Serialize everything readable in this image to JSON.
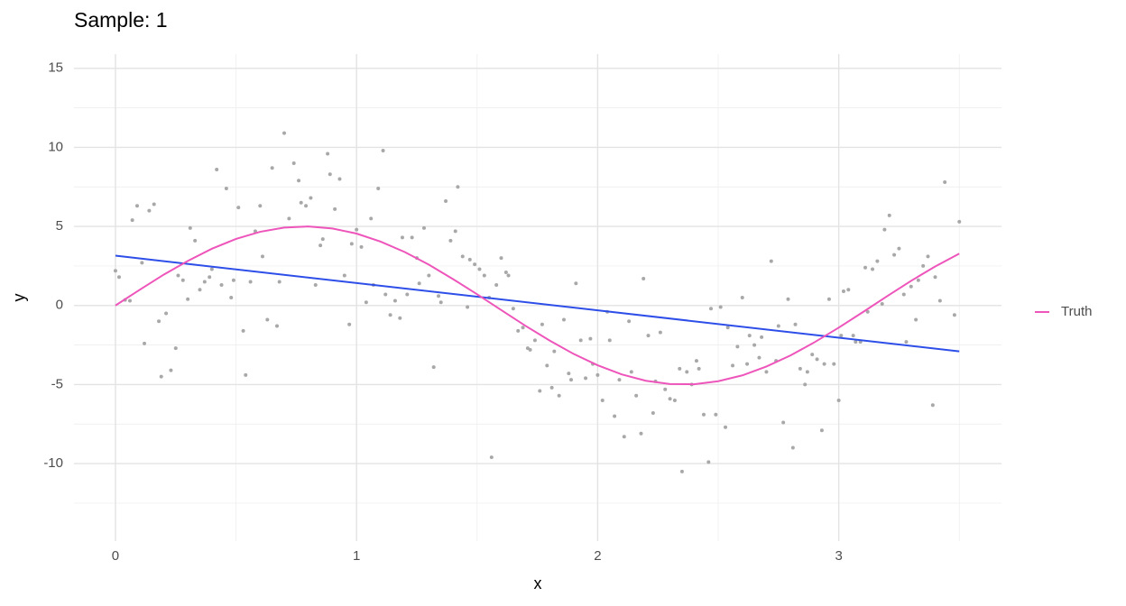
{
  "chart_data": {
    "type": "scatter",
    "title": "Sample: 1",
    "xlabel": "x",
    "ylabel": "y",
    "xlim": [
      -0.172,
      3.675
    ],
    "ylim": [
      -14.9,
      15.9
    ],
    "xticks": [
      0,
      1,
      2,
      3
    ],
    "yticks": [
      -10,
      -5,
      0,
      5,
      10,
      15
    ],
    "x_minor_ticks": [
      0.5,
      1.5,
      2.5,
      3.5
    ],
    "y_minor_ticks": [
      -12.5,
      -7.5,
      -2.5,
      2.5,
      7.5,
      12.5
    ],
    "grid": true,
    "legend": "right",
    "points": {
      "color": "#a8a8a8",
      "x": [
        0.0,
        0.015,
        0.04,
        0.06,
        0.07,
        0.09,
        0.11,
        0.12,
        0.14,
        0.16,
        0.18,
        0.19,
        0.21,
        0.23,
        0.25,
        0.26,
        0.28,
        0.3,
        0.31,
        0.33,
        0.35,
        0.37,
        0.39,
        0.4,
        0.42,
        0.44,
        0.46,
        0.48,
        0.49,
        0.51,
        0.53,
        0.54,
        0.56,
        0.58,
        0.6,
        0.61,
        0.63,
        0.65,
        0.67,
        0.68,
        0.7,
        0.72,
        0.74,
        0.76,
        0.77,
        0.79,
        0.81,
        0.83,
        0.85,
        0.86,
        0.88,
        0.89,
        0.91,
        0.93,
        0.95,
        0.97,
        0.98,
        1.0,
        1.02,
        1.04,
        1.06,
        1.07,
        1.09,
        1.11,
        1.12,
        1.14,
        1.16,
        1.18,
        1.19,
        1.21,
        1.23,
        1.25,
        1.26,
        1.28,
        1.3,
        1.32,
        1.34,
        1.35,
        1.37,
        1.39,
        1.41,
        1.42,
        1.44,
        1.46,
        1.47,
        1.49,
        1.51,
        1.53,
        1.55,
        1.56,
        1.58,
        1.6,
        1.62,
        1.63,
        1.65,
        1.67,
        1.69,
        1.71,
        1.72,
        1.74,
        1.76,
        1.77,
        1.79,
        1.81,
        1.82,
        1.84,
        1.86,
        1.88,
        1.89,
        1.91,
        1.93,
        1.95,
        1.97,
        1.98,
        2.0,
        2.02,
        2.04,
        2.05,
        2.07,
        2.09,
        2.11,
        2.13,
        2.14,
        2.16,
        2.18,
        2.19,
        2.21,
        2.23,
        2.24,
        2.26,
        2.28,
        2.3,
        2.32,
        2.34,
        2.35,
        2.37,
        2.39,
        2.41,
        2.42,
        2.44,
        2.46,
        2.47,
        2.49,
        2.51,
        2.53,
        2.54,
        2.56,
        2.58,
        2.6,
        2.62,
        2.63,
        2.65,
        2.67,
        2.68,
        2.7,
        2.72,
        2.74,
        2.75,
        2.77,
        2.79,
        2.81,
        2.82,
        2.84,
        2.86,
        2.87,
        2.89,
        2.91,
        2.93,
        2.94,
        2.96,
        2.98,
        3.0,
        3.01,
        3.02,
        3.04,
        3.06,
        3.07,
        3.09,
        3.11,
        3.12,
        3.14,
        3.16,
        3.18,
        3.19,
        3.21,
        3.23,
        3.25,
        3.27,
        3.28,
        3.3,
        3.32,
        3.33,
        3.35,
        3.37,
        3.39,
        3.4,
        3.42,
        3.44,
        3.48,
        3.5
      ],
      "values": [
        2.2,
        1.8,
        0.35,
        0.3,
        5.4,
        6.3,
        2.7,
        -2.4,
        6.0,
        6.4,
        -1.0,
        -4.5,
        -0.5,
        -4.1,
        -2.7,
        1.9,
        1.6,
        0.4,
        4.9,
        4.1,
        1.0,
        1.5,
        1.8,
        2.3,
        8.6,
        1.3,
        7.4,
        0.5,
        1.6,
        6.2,
        -1.6,
        -4.4,
        1.5,
        4.7,
        6.3,
        3.1,
        -0.9,
        8.7,
        -1.3,
        1.5,
        10.9,
        5.5,
        9.0,
        7.9,
        6.5,
        6.3,
        6.8,
        1.3,
        3.8,
        4.2,
        9.6,
        8.3,
        6.1,
        8.0,
        1.9,
        -1.2,
        3.9,
        4.8,
        3.7,
        0.2,
        5.5,
        1.3,
        7.4,
        9.8,
        0.7,
        -0.6,
        0.3,
        -0.8,
        4.3,
        0.7,
        4.3,
        3.0,
        1.4,
        4.9,
        1.9,
        -3.9,
        0.6,
        0.2,
        6.6,
        4.1,
        4.7,
        7.5,
        3.1,
        -0.1,
        2.9,
        2.6,
        2.3,
        1.9,
        0.5,
        -9.6,
        1.3,
        3.0,
        2.1,
        1.9,
        -0.2,
        -1.6,
        -1.4,
        -2.7,
        -2.8,
        -2.2,
        -5.4,
        -1.2,
        -3.8,
        -5.2,
        -2.9,
        -5.7,
        -0.9,
        -4.3,
        -4.7,
        1.4,
        -2.2,
        -4.6,
        -2.1,
        -3.7,
        -4.4,
        -6.0,
        -0.4,
        -2.2,
        -7.0,
        -4.7,
        -8.3,
        -1.0,
        -4.2,
        -5.7,
        -8.1,
        1.7,
        -1.9,
        -6.8,
        -4.8,
        -1.7,
        -5.3,
        -5.9,
        -6.0,
        -4.0,
        -10.5,
        -4.2,
        -5.0,
        -3.5,
        -4.0,
        -6.9,
        -9.9,
        -0.2,
        -6.9,
        -0.1,
        -7.7,
        -1.4,
        -3.8,
        -2.6,
        0.5,
        -3.7,
        -1.9,
        -2.5,
        -3.3,
        -2.0,
        -4.2,
        2.8,
        -3.5,
        -1.3,
        -7.4,
        0.4,
        -9.0,
        -1.2,
        -4.0,
        -5.0,
        -4.2,
        -3.1,
        -3.4,
        -7.9,
        -3.7,
        0.4,
        -3.7,
        -6.0,
        -1.9,
        0.9,
        1.0,
        -1.9,
        -2.3,
        -2.3,
        2.4,
        -0.4,
        2.3,
        2.8,
        0.1,
        4.8,
        5.7,
        3.2,
        3.6,
        0.7,
        -2.3,
        1.2,
        -0.9,
        1.6,
        2.5,
        3.1,
        -6.3,
        1.8,
        0.3,
        7.8,
        -0.6,
        5.3
      ]
    },
    "fit": {
      "color": "#2d4ee8",
      "x": [
        0,
        3.5
      ],
      "values": [
        3.15,
        -2.9
      ]
    },
    "series": [
      {
        "name": "Truth",
        "color": "#ee55bb",
        "x": [
          0,
          0.1,
          0.2,
          0.3,
          0.4,
          0.5,
          0.6,
          0.7,
          0.8,
          0.9,
          1.0,
          1.1,
          1.2,
          1.3,
          1.4,
          1.5,
          1.6,
          1.7,
          1.8,
          1.9,
          2.0,
          2.1,
          2.2,
          2.3,
          2.4,
          2.5,
          2.6,
          2.7,
          2.8,
          2.9,
          3.0,
          3.1,
          3.2,
          3.3,
          3.4,
          3.5
        ],
        "values": [
          0,
          0.99,
          1.95,
          2.82,
          3.59,
          4.21,
          4.66,
          4.93,
          5.0,
          4.87,
          4.55,
          4.04,
          3.38,
          2.58,
          1.67,
          0.71,
          -0.29,
          -1.28,
          -2.21,
          -3.06,
          -3.78,
          -4.36,
          -4.76,
          -4.97,
          -4.98,
          -4.79,
          -4.42,
          -3.86,
          -3.16,
          -2.32,
          -1.4,
          -0.42,
          0.58,
          1.56,
          2.47,
          3.28
        ]
      }
    ]
  }
}
